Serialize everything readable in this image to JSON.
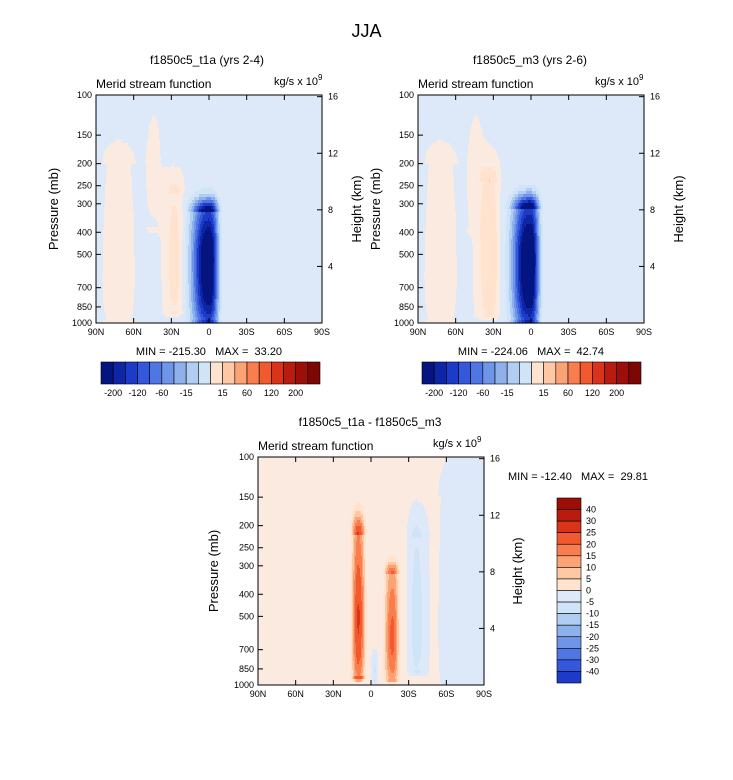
{
  "figure": {
    "title": "JJA",
    "colors": {
      "pos": [
        "#ffe3cf",
        "#ffc8a5",
        "#fca376",
        "#f97d4f",
        "#f05a2e",
        "#d9331a",
        "#b81c0e",
        "#9c0f08",
        "#7d0705"
      ],
      "neg": [
        "#cfe4f7",
        "#b1cdf3",
        "#8eb1ec",
        "#6e95e8",
        "#4f77e3",
        "#3457dc",
        "#1c3bc8",
        "#0e25a6",
        "#041480"
      ],
      "zero_pos": "#fbeadf",
      "zero_neg": "#dde9f8"
    }
  },
  "chart_data": [
    {
      "type": "heatmap",
      "panel_title": "f1850c5_t1a (yrs 2-4)",
      "left_label": "Merid stream function",
      "units_base": "kg/s x 10",
      "units_exp": "9",
      "ylabel": "Pressure (mb)",
      "ylabel_right": "Height (km)",
      "x_ticks": [
        "90N",
        "60N",
        "30N",
        "0",
        "30S",
        "60S",
        "90S"
      ],
      "xlim": [
        90,
        -90
      ],
      "y_ticks": [
        "100",
        "150",
        "200",
        "250",
        "300",
        "400",
        "500",
        "700",
        "850",
        "1000"
      ],
      "y_values": [
        100,
        150,
        200,
        250,
        300,
        400,
        500,
        700,
        850,
        1000
      ],
      "ylim": [
        100,
        1000
      ],
      "height_ticks": [
        "16",
        "12",
        "8",
        "4"
      ],
      "height_values": [
        16,
        12,
        8,
        4
      ],
      "stats_text": "MIN = -215.30   MAX =  33.20",
      "min": -215.3,
      "max": 33.2,
      "scale": 20,
      "features": [
        {
          "lat": 0,
          "p": 520,
          "amp": -215,
          "wl": 13,
          "ul": 7,
          "pt": 330,
          "pb": 960
        },
        {
          "lat": 27,
          "p": 530,
          "amp": 33,
          "wl": 8,
          "ul": 6,
          "pt": 270,
          "pb": 880
        },
        {
          "lat": 72,
          "p": 620,
          "amp": 9,
          "wl": 14,
          "ul": 14,
          "pt": 200,
          "pb": 980
        },
        {
          "lat": -50,
          "p": 540,
          "amp": -7,
          "wl": 30,
          "ul": 30,
          "pt": 150,
          "pb": 990
        },
        {
          "lat": -76,
          "p": 700,
          "amp": 6,
          "wl": 9,
          "ul": 9,
          "pt": 320,
          "pb": 1000
        },
        {
          "lat": 44,
          "p": 200,
          "amp": 5,
          "wl": 10,
          "ul": 10,
          "pt": 100,
          "pb": 380
        }
      ],
      "background": -4,
      "colorbar": {
        "labels": [
          "-200",
          "-120",
          "-60",
          "-15",
          "15",
          "60",
          "120",
          "200"
        ]
      }
    },
    {
      "type": "heatmap",
      "panel_title": "f1850c5_m3 (yrs 2-6)",
      "left_label": "Merid stream function",
      "units_base": "kg/s x 10",
      "units_exp": "9",
      "ylabel": "Pressure (mb)",
      "ylabel_right": "Height (km)",
      "x_ticks": [
        "90N",
        "60N",
        "30N",
        "0",
        "30S",
        "60S",
        "90S"
      ],
      "xlim": [
        90,
        -90
      ],
      "y_ticks": [
        "100",
        "150",
        "200",
        "250",
        "300",
        "400",
        "500",
        "700",
        "850",
        "1000"
      ],
      "y_values": [
        100,
        150,
        200,
        250,
        300,
        400,
        500,
        700,
        850,
        1000
      ],
      "ylim": [
        100,
        1000
      ],
      "height_ticks": [
        "16",
        "12",
        "8",
        "4"
      ],
      "height_values": [
        16,
        12,
        8,
        4
      ],
      "stats_text": "MIN = -224.06   MAX =  42.74",
      "min": -224.06,
      "max": 42.74,
      "scale": 20,
      "features": [
        {
          "lat": 1,
          "p": 520,
          "amp": -224,
          "wl": 13,
          "ul": 7,
          "pt": 320,
          "pb": 960
        },
        {
          "lat": 32,
          "p": 500,
          "amp": 43,
          "wl": 10,
          "ul": 6,
          "pt": 240,
          "pb": 900
        },
        {
          "lat": 72,
          "p": 620,
          "amp": 9,
          "wl": 14,
          "ul": 14,
          "pt": 200,
          "pb": 980
        },
        {
          "lat": -50,
          "p": 540,
          "amp": -7,
          "wl": 30,
          "ul": 30,
          "pt": 150,
          "pb": 990
        },
        {
          "lat": -76,
          "p": 700,
          "amp": 6,
          "wl": 9,
          "ul": 9,
          "pt": 320,
          "pb": 1000
        },
        {
          "lat": 44,
          "p": 200,
          "amp": 5,
          "wl": 10,
          "ul": 10,
          "pt": 100,
          "pb": 380
        }
      ],
      "background": -4,
      "colorbar": {
        "labels": [
          "-200",
          "-120",
          "-60",
          "-15",
          "15",
          "60",
          "120",
          "200"
        ]
      }
    },
    {
      "type": "heatmap",
      "panel_title": "f1850c5_t1a - f1850c5_m3",
      "left_label": "Merid stream function",
      "units_base": "kg/s x 10",
      "units_exp": "9",
      "ylabel": "Pressure (mb)",
      "ylabel_right": "Height (km)",
      "x_ticks": [
        "90N",
        "60N",
        "30N",
        "0",
        "30S",
        "60S",
        "90S"
      ],
      "xlim": [
        90,
        -90
      ],
      "y_ticks": [
        "100",
        "150",
        "200",
        "250",
        "300",
        "400",
        "500",
        "700",
        "850",
        "1000"
      ],
      "y_values": [
        100,
        150,
        200,
        250,
        300,
        400,
        500,
        700,
        850,
        1000
      ],
      "ylim": [
        100,
        1000
      ],
      "height_ticks": [
        "16",
        "12",
        "8",
        "4"
      ],
      "height_values": [
        16,
        12,
        8,
        4
      ],
      "stats_text": "MIN = -12.40   MAX =  29.81",
      "min": -12.4,
      "max": 29.81,
      "scale": 5,
      "features": [
        {
          "lat": 10,
          "p": 500,
          "amp": 30,
          "wl": 5,
          "ul": 5,
          "pt": 220,
          "pb": 920
        },
        {
          "lat": -17,
          "p": 620,
          "amp": 26,
          "wl": 6,
          "ul": 5,
          "pt": 330,
          "pb": 930
        },
        {
          "lat": -36,
          "p": 520,
          "amp": -8,
          "wl": 5,
          "ul": 7,
          "pt": 230,
          "pb": 850
        },
        {
          "lat": -3,
          "p": 860,
          "amp": -6,
          "wl": 2,
          "ul": 2,
          "pt": 760,
          "pb": 950
        },
        {
          "lat": 55,
          "p": 500,
          "amp": 4,
          "wl": 25,
          "ul": 25,
          "pt": 150,
          "pb": 1000
        },
        {
          "lat": -74,
          "p": 560,
          "amp": -4,
          "wl": 15,
          "ul": 15,
          "pt": 150,
          "pb": 1000
        }
      ],
      "background": 0.5,
      "colorbar": {
        "labels": [
          "40",
          "30",
          "25",
          "20",
          "15",
          "10",
          "5",
          "0",
          "-5",
          "-10",
          "-15",
          "-20",
          "-25",
          "-30",
          "-40"
        ]
      }
    }
  ]
}
